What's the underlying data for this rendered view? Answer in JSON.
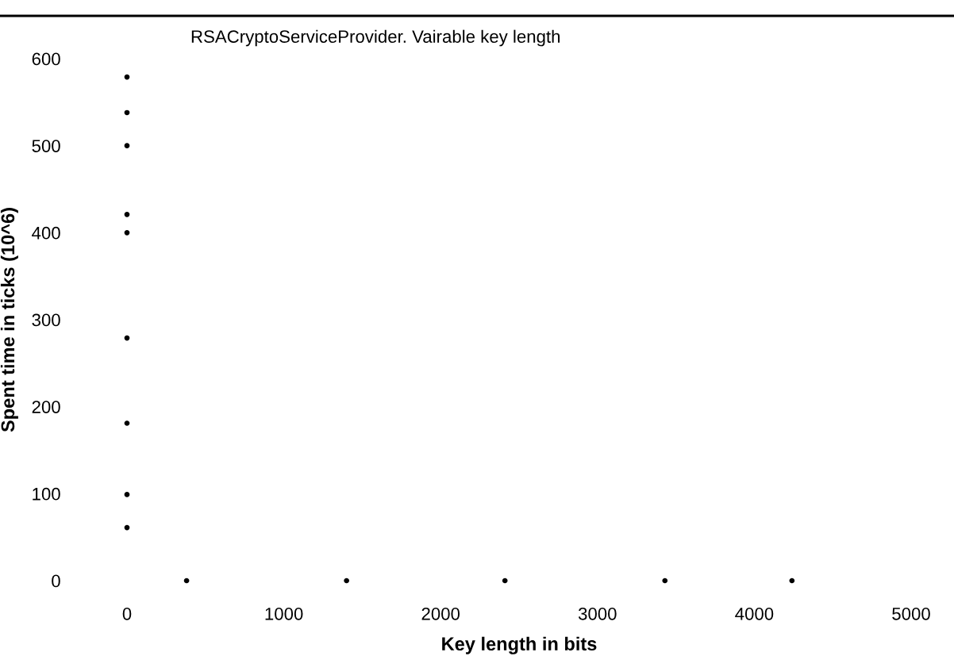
{
  "chart_data": {
    "type": "scatter",
    "title": "RSACryptoServiceProvider. Vairable key length",
    "xlabel": "Key length in bits",
    "ylabel": "Spent time in ticks (10^6)",
    "series": [
      {
        "color": "#000000",
        "x": [
          0,
          0,
          0,
          0,
          0,
          0,
          0,
          0,
          0,
          380,
          1400,
          2410,
          3430,
          4240
        ],
        "values": [
          579,
          538,
          500,
          421,
          400,
          279,
          181,
          99,
          61,
          0,
          0,
          0,
          0,
          0
        ]
      }
    ],
    "xlim": [
      0,
      5000
    ],
    "ylim": [
      0,
      600
    ],
    "xticks": [
      0,
      1000,
      2000,
      3000,
      4000,
      5000
    ],
    "yticks": [
      0,
      100,
      200,
      300,
      400,
      500,
      600
    ],
    "grid": false,
    "legend": false,
    "marker": "circle"
  }
}
